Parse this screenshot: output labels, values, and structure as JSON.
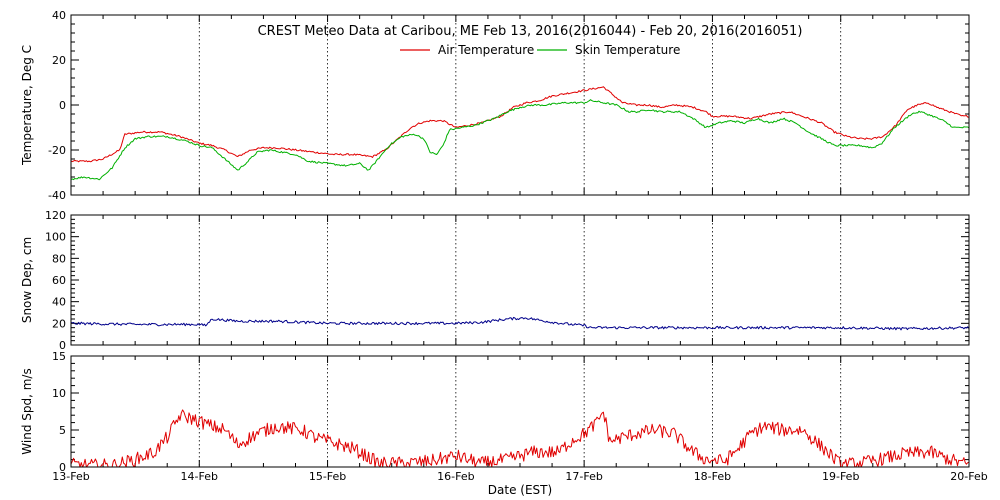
{
  "chart_data": {
    "title": "CREST Meteo Data at Caribou, ME   Feb 13, 2016(2016044) - Feb 20, 2016(2016051)",
    "xlabel": "Date (EST)",
    "x_range": [
      0,
      7
    ],
    "x_ticks": [
      {
        "x": 0,
        "label": "13-Feb"
      },
      {
        "x": 1,
        "label": "14-Feb"
      },
      {
        "x": 2,
        "label": "15-Feb"
      },
      {
        "x": 3,
        "label": "16-Feb"
      },
      {
        "x": 4,
        "label": "17-Feb"
      },
      {
        "x": 5,
        "label": "18-Feb"
      },
      {
        "x": 6,
        "label": "19-Feb"
      },
      {
        "x": 7,
        "label": "20-Feb"
      }
    ],
    "colors": {
      "air": "#e00000",
      "skin": "#00b000",
      "snow": "#00008b",
      "wind": "#e00000"
    },
    "panels": [
      {
        "id": "temperature",
        "type": "line",
        "ylabel": "Temperature, Deg C",
        "ylim": [
          -40,
          40
        ],
        "yticks": [
          -40,
          -20,
          0,
          20,
          40
        ],
        "grid": true,
        "legend": "top-center",
        "series": [
          {
            "name": "Air Temperature",
            "color_key": "air",
            "points": [
              [
                0,
                -25
              ],
              [
                0.15,
                -25
              ],
              [
                0.25,
                -24
              ],
              [
                0.38,
                -20
              ],
              [
                0.42,
                -13
              ],
              [
                0.55,
                -12
              ],
              [
                0.7,
                -12
              ],
              [
                0.85,
                -14
              ],
              [
                1.0,
                -17
              ],
              [
                1.1,
                -18
              ],
              [
                1.2,
                -20
              ],
              [
                1.3,
                -23
              ],
              [
                1.4,
                -20
              ],
              [
                1.5,
                -19
              ],
              [
                1.6,
                -19
              ],
              [
                1.75,
                -20
              ],
              [
                1.9,
                -21
              ],
              [
                2.05,
                -22
              ],
              [
                2.2,
                -22
              ],
              [
                2.35,
                -23
              ],
              [
                2.45,
                -20
              ],
              [
                2.55,
                -15
              ],
              [
                2.65,
                -10
              ],
              [
                2.72,
                -8
              ],
              [
                2.8,
                -7
              ],
              [
                2.9,
                -7
              ],
              [
                3.0,
                -10
              ],
              [
                3.1,
                -9
              ],
              [
                3.2,
                -8
              ],
              [
                3.35,
                -5
              ],
              [
                3.45,
                -1
              ],
              [
                3.55,
                1
              ],
              [
                3.65,
                2
              ],
              [
                3.75,
                4
              ],
              [
                3.85,
                5
              ],
              [
                3.95,
                6
              ],
              [
                4.05,
                7
              ],
              [
                4.15,
                8
              ],
              [
                4.3,
                1
              ],
              [
                4.4,
                0
              ],
              [
                4.5,
                0
              ],
              [
                4.6,
                -1
              ],
              [
                4.72,
                0
              ],
              [
                4.85,
                -1
              ],
              [
                4.95,
                -3
              ],
              [
                5.0,
                -5
              ],
              [
                5.15,
                -5
              ],
              [
                5.3,
                -6
              ],
              [
                5.45,
                -4
              ],
              [
                5.6,
                -3
              ],
              [
                5.75,
                -6
              ],
              [
                5.85,
                -8
              ],
              [
                5.95,
                -12
              ],
              [
                6.05,
                -14
              ],
              [
                6.15,
                -15
              ],
              [
                6.25,
                -15
              ],
              [
                6.33,
                -14
              ],
              [
                6.43,
                -9
              ],
              [
                6.52,
                -2
              ],
              [
                6.6,
                0
              ],
              [
                6.68,
                1
              ],
              [
                6.75,
                -1
              ],
              [
                6.85,
                -3
              ],
              [
                6.95,
                -5
              ],
              [
                7.0,
                -5
              ]
            ]
          },
          {
            "name": "Skin Temperature",
            "color_key": "skin",
            "points": [
              [
                0,
                -33
              ],
              [
                0.1,
                -32
              ],
              [
                0.22,
                -33
              ],
              [
                0.32,
                -28
              ],
              [
                0.42,
                -19
              ],
              [
                0.5,
                -15
              ],
              [
                0.6,
                -14
              ],
              [
                0.75,
                -14
              ],
              [
                0.9,
                -16
              ],
              [
                1.0,
                -18
              ],
              [
                1.1,
                -19
              ],
              [
                1.2,
                -24
              ],
              [
                1.3,
                -29
              ],
              [
                1.38,
                -25
              ],
              [
                1.45,
                -21
              ],
              [
                1.55,
                -20
              ],
              [
                1.65,
                -21
              ],
              [
                1.75,
                -22
              ],
              [
                1.85,
                -25
              ],
              [
                2.0,
                -26
              ],
              [
                2.15,
                -27
              ],
              [
                2.25,
                -26
              ],
              [
                2.32,
                -29
              ],
              [
                2.38,
                -25
              ],
              [
                2.48,
                -18
              ],
              [
                2.58,
                -14
              ],
              [
                2.68,
                -13
              ],
              [
                2.75,
                -15
              ],
              [
                2.8,
                -21
              ],
              [
                2.85,
                -22
              ],
              [
                2.9,
                -18
              ],
              [
                2.95,
                -11
              ],
              [
                3.05,
                -10
              ],
              [
                3.15,
                -9
              ],
              [
                3.3,
                -6
              ],
              [
                3.4,
                -3
              ],
              [
                3.5,
                -1
              ],
              [
                3.6,
                0
              ],
              [
                3.7,
                0
              ],
              [
                3.85,
                1
              ],
              [
                4.0,
                1
              ],
              [
                4.05,
                2
              ],
              [
                4.15,
                1
              ],
              [
                4.25,
                0
              ],
              [
                4.35,
                -3
              ],
              [
                4.42,
                -3
              ],
              [
                4.5,
                -2
              ],
              [
                4.6,
                -3
              ],
              [
                4.75,
                -3
              ],
              [
                4.85,
                -6
              ],
              [
                4.95,
                -10
              ],
              [
                5.05,
                -8
              ],
              [
                5.15,
                -7
              ],
              [
                5.25,
                -8
              ],
              [
                5.35,
                -6
              ],
              [
                5.45,
                -8
              ],
              [
                5.55,
                -6
              ],
              [
                5.65,
                -8
              ],
              [
                5.75,
                -12
              ],
              [
                5.85,
                -15
              ],
              [
                5.95,
                -18
              ],
              [
                6.05,
                -18
              ],
              [
                6.15,
                -18
              ],
              [
                6.25,
                -19
              ],
              [
                6.32,
                -17
              ],
              [
                6.42,
                -10
              ],
              [
                6.55,
                -4
              ],
              [
                6.62,
                -3
              ],
              [
                6.72,
                -5
              ],
              [
                6.8,
                -7
              ],
              [
                6.88,
                -10
              ],
              [
                7.0,
                -10
              ]
            ]
          }
        ]
      },
      {
        "id": "snow",
        "type": "line",
        "ylabel": "Snow Dep, cm",
        "ylim": [
          0,
          120
        ],
        "yticks": [
          0,
          20,
          40,
          60,
          80,
          100,
          120
        ],
        "grid": true,
        "series": [
          {
            "name": "",
            "color_key": "snow",
            "noise": 1.2,
            "points": [
              [
                0,
                20
              ],
              [
                0.5,
                19
              ],
              [
                1.0,
                19
              ],
              [
                1.05,
                18
              ],
              [
                1.1,
                24
              ],
              [
                1.3,
                22
              ],
              [
                1.6,
                22
              ],
              [
                2.0,
                20
              ],
              [
                2.5,
                20
              ],
              [
                3.0,
                20
              ],
              [
                3.2,
                21
              ],
              [
                3.4,
                24
              ],
              [
                3.55,
                25
              ],
              [
                3.75,
                21
              ],
              [
                3.9,
                19
              ],
              [
                4.0,
                18
              ],
              [
                4.05,
                16
              ],
              [
                4.5,
                16
              ],
              [
                5.0,
                16
              ],
              [
                5.5,
                16
              ],
              [
                6.0,
                16
              ],
              [
                6.5,
                15
              ],
              [
                7.0,
                16
              ]
            ]
          }
        ]
      },
      {
        "id": "wind",
        "type": "line",
        "ylabel": "Wind Spd, m/s",
        "ylim": [
          0,
          15
        ],
        "yticks": [
          0,
          5,
          10,
          15
        ],
        "grid": true,
        "series": [
          {
            "name": "",
            "color_key": "wind",
            "noise": 0.9,
            "points": [
              [
                0,
                0.3
              ],
              [
                0.2,
                0.2
              ],
              [
                0.35,
                0.3
              ],
              [
                0.5,
                1.0
              ],
              [
                0.65,
                2.0
              ],
              [
                0.75,
                4.0
              ],
              [
                0.85,
                7.0
              ],
              [
                0.95,
                6.5
              ],
              [
                1.1,
                5.5
              ],
              [
                1.2,
                5.0
              ],
              [
                1.3,
                3.0
              ],
              [
                1.45,
                4.5
              ],
              [
                1.6,
                5.5
              ],
              [
                1.8,
                5.0
              ],
              [
                1.9,
                4.0
              ],
              [
                2.0,
                3.5
              ],
              [
                2.1,
                3.0
              ],
              [
                2.2,
                2.5
              ],
              [
                2.3,
                1.5
              ],
              [
                2.4,
                0.5
              ],
              [
                2.6,
                0.5
              ],
              [
                2.8,
                0.8
              ],
              [
                3.0,
                1.5
              ],
              [
                3.2,
                0.5
              ],
              [
                3.4,
                1.0
              ],
              [
                3.6,
                2.0
              ],
              [
                3.8,
                2.0
              ],
              [
                3.9,
                3.5
              ],
              [
                4.0,
                4.5
              ],
              [
                4.1,
                6.0
              ],
              [
                4.15,
                7.5
              ],
              [
                4.2,
                3.5
              ],
              [
                4.4,
                4.5
              ],
              [
                4.55,
                5.0
              ],
              [
                4.7,
                4.5
              ],
              [
                4.85,
                2.0
              ],
              [
                4.95,
                1.0
              ],
              [
                5.1,
                0.8
              ],
              [
                5.2,
                2.5
              ],
              [
                5.3,
                4.5
              ],
              [
                5.4,
                5.5
              ],
              [
                5.55,
                5.0
              ],
              [
                5.7,
                5.0
              ],
              [
                5.8,
                3.5
              ],
              [
                5.9,
                2.0
              ],
              [
                6.0,
                0.3
              ],
              [
                6.15,
                0.5
              ],
              [
                6.3,
                1.0
              ],
              [
                6.5,
                1.8
              ],
              [
                6.7,
                2.0
              ],
              [
                6.85,
                1.0
              ],
              [
                7.0,
                0.3
              ]
            ]
          }
        ]
      }
    ]
  }
}
